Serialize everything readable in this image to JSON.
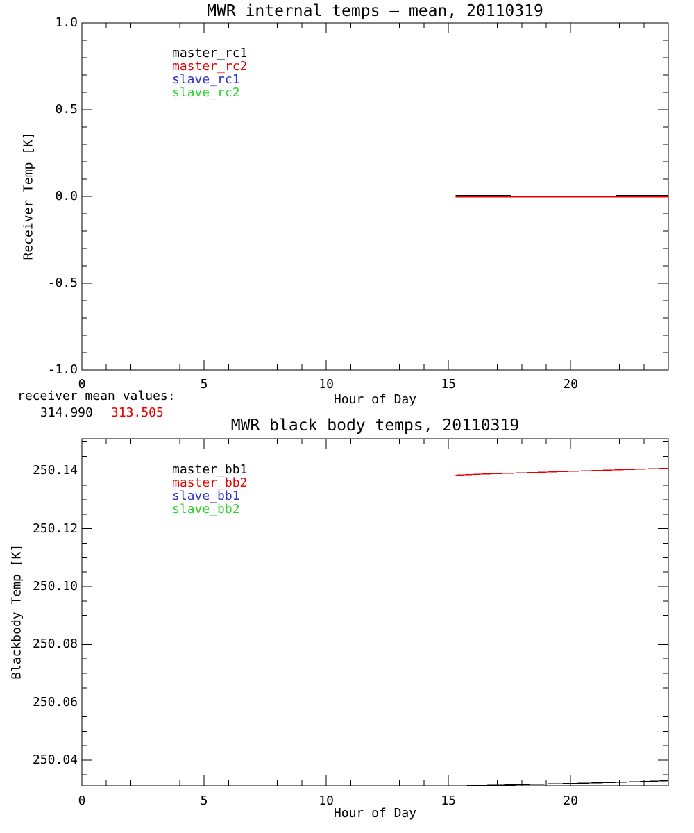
{
  "colors": {
    "black": "#000000",
    "red": "#e60000",
    "blue": "#3232cd",
    "green": "#2fd42f",
    "background": "#ffffff"
  },
  "mean_values": {
    "label": "receiver mean values:",
    "value1": "314.990",
    "value2": "313.505"
  },
  "chart_data": [
    {
      "type": "line",
      "title": "MWR internal temps — mean, 20110319",
      "xlabel": "Hour of Day",
      "ylabel": "Receiver Temp [K]",
      "xlim": [
        0,
        24
      ],
      "ylim": [
        -1.0,
        1.0
      ],
      "xticks": [
        {
          "v": 0,
          "label": "0"
        },
        {
          "v": 5,
          "label": "5"
        },
        {
          "v": 10,
          "label": "10"
        },
        {
          "v": 15,
          "label": "15"
        },
        {
          "v": 20,
          "label": "20"
        }
      ],
      "xtick_minor_step": 1,
      "yticks": [
        {
          "v": -1.0,
          "label": "-1.0"
        },
        {
          "v": -0.5,
          "label": "-0.5"
        },
        {
          "v": 0.0,
          "label": "0.0"
        },
        {
          "v": 0.5,
          "label": "0.5"
        },
        {
          "v": 1.0,
          "label": "1.0"
        }
      ],
      "ytick_minor_step": 0.1,
      "grid": false,
      "legend_position": "upper-left-inside",
      "legend": [
        {
          "label": "master_rc1",
          "color": "black"
        },
        {
          "label": "master_rc2",
          "color": "red"
        },
        {
          "label": "slave_rc1",
          "color": "blue"
        },
        {
          "label": "slave_rc2",
          "color": "green"
        }
      ],
      "series": [
        {
          "name": "master_rc2",
          "color": "red",
          "width": 1.6,
          "points": [
            [
              15.3,
              -0.003
            ],
            [
              24,
              -0.003
            ]
          ]
        },
        {
          "name": "master_rc1_seg1",
          "color": "black",
          "width": 1.6,
          "points": [
            [
              15.3,
              0.004
            ],
            [
              17.55,
              0.004
            ]
          ]
        },
        {
          "name": "master_rc1_seg2",
          "color": "black",
          "width": 1.6,
          "points": [
            [
              21.87,
              0.004
            ],
            [
              24,
              0.004
            ]
          ]
        }
      ]
    },
    {
      "type": "line",
      "title": "MWR black body temps, 20110319",
      "xlabel": "Hour of Day",
      "ylabel": "Blackbody Temp [K]",
      "xlim": [
        0,
        24
      ],
      "ylim": [
        250.0311,
        250.1511
      ],
      "xticks": [
        {
          "v": 0,
          "label": "0"
        },
        {
          "v": 5,
          "label": "5"
        },
        {
          "v": 10,
          "label": "10"
        },
        {
          "v": 15,
          "label": "15"
        },
        {
          "v": 20,
          "label": "20"
        }
      ],
      "xtick_minor_step": 1,
      "yticks": [
        {
          "v": 250.04,
          "label": "250.04"
        },
        {
          "v": 250.06,
          "label": "250.06"
        },
        {
          "v": 250.08,
          "label": "250.08"
        },
        {
          "v": 250.1,
          "label": "250.10"
        },
        {
          "v": 250.12,
          "label": "250.12"
        },
        {
          "v": 250.14,
          "label": "250.14"
        }
      ],
      "ytick_minor_step": 0.005,
      "grid": false,
      "legend_position": "upper-left-inside",
      "legend": [
        {
          "label": "master_bb1",
          "color": "black"
        },
        {
          "label": "master_bb2",
          "color": "red"
        },
        {
          "label": "slave_bb1",
          "color": "blue"
        },
        {
          "label": "slave_bb2",
          "color": "green"
        }
      ],
      "series": [
        {
          "name": "master_bb2",
          "color": "red",
          "width": 1.4,
          "points": [
            [
              15.3,
              250.1385
            ],
            [
              16.5,
              250.1389
            ],
            [
              18,
              250.1393
            ],
            [
              19.5,
              250.1397
            ],
            [
              21,
              250.1401
            ],
            [
              22.5,
              250.1405
            ],
            [
              24,
              250.1409
            ]
          ]
        },
        {
          "name": "master_bb1",
          "color": "black",
          "width": 1.4,
          "points": [
            [
              15.68,
              250.0311
            ],
            [
              17,
              250.0313
            ],
            [
              18.5,
              250.0316
            ],
            [
              20,
              250.0319
            ],
            [
              21.5,
              250.0322
            ],
            [
              23,
              250.0326
            ],
            [
              24,
              250.0329
            ]
          ]
        }
      ]
    }
  ]
}
